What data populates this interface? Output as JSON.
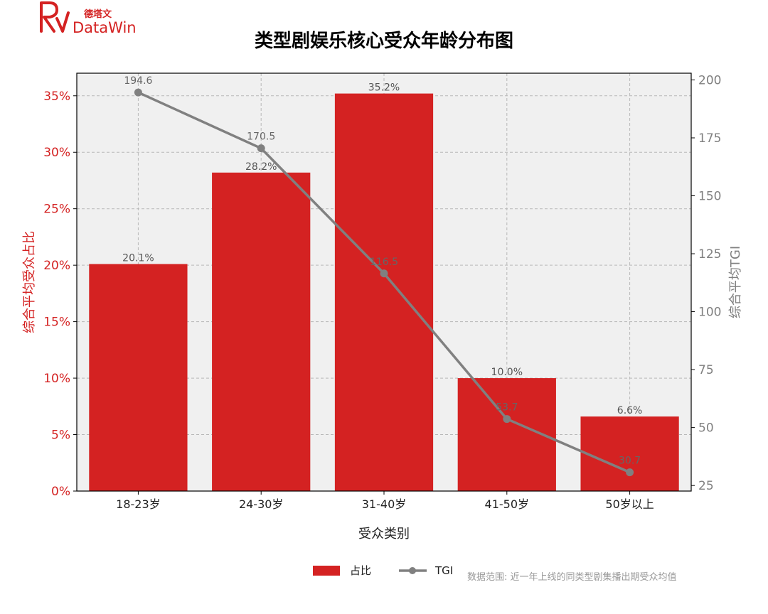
{
  "brand": {
    "name": "DataWin",
    "name_cn": "德塔文",
    "color": "#d42222"
  },
  "chart_data": {
    "type": "bar",
    "title": "类型剧娱乐核心受众年龄分布图",
    "xlabel": "受众类别",
    "ylabel": "综合平均受众占比",
    "y2label": "综合平均TGI",
    "categories": [
      "18-23岁",
      "24-30岁",
      "31-40岁",
      "41-50岁",
      "50岁以上"
    ],
    "series": [
      {
        "name": "占比",
        "type": "bar",
        "axis": "left",
        "values": [
          20.1,
          28.2,
          35.2,
          10.0,
          6.6
        ],
        "labels": [
          "20.1%",
          "28.2%",
          "35.2%",
          "10.0%",
          "6.6%"
        ],
        "color": "#d42222"
      },
      {
        "name": "TGI",
        "type": "line",
        "axis": "right",
        "values": [
          194.6,
          170.5,
          116.5,
          53.7,
          30.7
        ],
        "labels": [
          "194.6",
          "170.5",
          "116.5",
          "53.7",
          "30.7"
        ],
        "color": "#808080"
      }
    ],
    "ylim": [
      0,
      37
    ],
    "yticks": [
      0,
      5,
      10,
      15,
      20,
      25,
      30,
      35
    ],
    "ytick_labels": [
      "0%",
      "5%",
      "10%",
      "15%",
      "20%",
      "25%",
      "30%",
      "35%"
    ],
    "y2lim": [
      22.6,
      202.9
    ],
    "y2ticks": [
      25,
      50,
      75,
      100,
      125,
      150,
      175,
      200
    ],
    "y2tick_labels": [
      "25",
      "50",
      "75",
      "100",
      "125",
      "150",
      "175",
      "200"
    ],
    "grid": true,
    "legend": "bottom-center",
    "note": "数据范围: 近一年上线的同类型剧集播出期受众均值",
    "colors": {
      "left_axis": "#d42222",
      "right_axis": "#808080",
      "plot_bg": "#f0f0f0",
      "grid": "#b8b8b8"
    }
  }
}
